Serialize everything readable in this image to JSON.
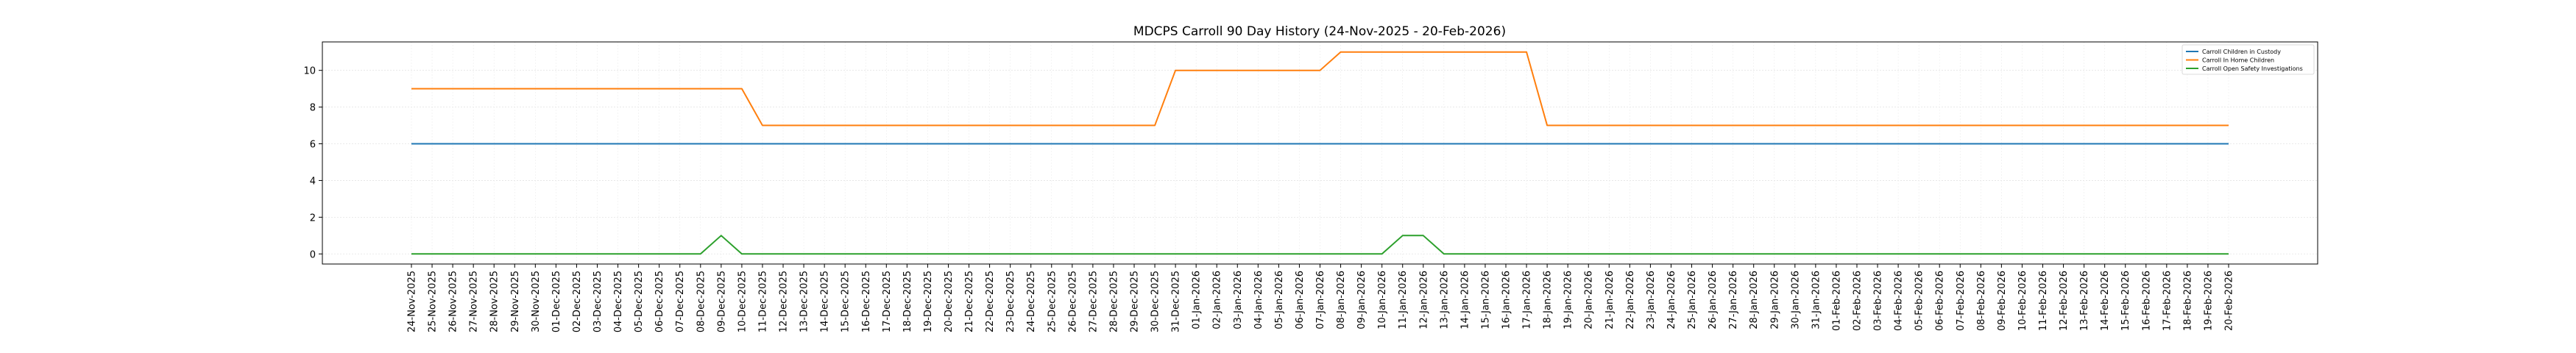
{
  "chart_data": {
    "type": "line",
    "title": "MDCPS Carroll 90 Day History (24-Nov-2025 - 20-Feb-2026)",
    "xlabel": "",
    "ylabel": "",
    "grid": true,
    "legend_position": "top-right",
    "ylim": [
      -0.55,
      11.55
    ],
    "yticks": [
      0,
      2,
      4,
      6,
      8,
      10
    ],
    "categories": [
      "24-Nov-2025",
      "25-Nov-2025",
      "26-Nov-2025",
      "27-Nov-2025",
      "28-Nov-2025",
      "29-Nov-2025",
      "30-Nov-2025",
      "01-Dec-2025",
      "02-Dec-2025",
      "03-Dec-2025",
      "04-Dec-2025",
      "05-Dec-2025",
      "06-Dec-2025",
      "07-Dec-2025",
      "08-Dec-2025",
      "09-Dec-2025",
      "10-Dec-2025",
      "11-Dec-2025",
      "12-Dec-2025",
      "13-Dec-2025",
      "14-Dec-2025",
      "15-Dec-2025",
      "16-Dec-2025",
      "17-Dec-2025",
      "18-Dec-2025",
      "19-Dec-2025",
      "20-Dec-2025",
      "21-Dec-2025",
      "22-Dec-2025",
      "23-Dec-2025",
      "24-Dec-2025",
      "25-Dec-2025",
      "26-Dec-2025",
      "27-Dec-2025",
      "28-Dec-2025",
      "29-Dec-2025",
      "30-Dec-2025",
      "31-Dec-2025",
      "01-Jan-2026",
      "02-Jan-2026",
      "03-Jan-2026",
      "04-Jan-2026",
      "05-Jan-2026",
      "06-Jan-2026",
      "07-Jan-2026",
      "08-Jan-2026",
      "09-Jan-2026",
      "10-Jan-2026",
      "11-Jan-2026",
      "12-Jan-2026",
      "13-Jan-2026",
      "14-Jan-2026",
      "15-Jan-2026",
      "16-Jan-2026",
      "17-Jan-2026",
      "18-Jan-2026",
      "19-Jan-2026",
      "20-Jan-2026",
      "21-Jan-2026",
      "22-Jan-2026",
      "23-Jan-2026",
      "24-Jan-2026",
      "25-Jan-2026",
      "26-Jan-2026",
      "27-Jan-2026",
      "28-Jan-2026",
      "29-Jan-2026",
      "30-Jan-2026",
      "31-Jan-2026",
      "01-Feb-2026",
      "02-Feb-2026",
      "03-Feb-2026",
      "04-Feb-2026",
      "05-Feb-2026",
      "06-Feb-2026",
      "07-Feb-2026",
      "08-Feb-2026",
      "09-Feb-2026",
      "10-Feb-2026",
      "11-Feb-2026",
      "12-Feb-2026",
      "13-Feb-2026",
      "14-Feb-2026",
      "15-Feb-2026",
      "16-Feb-2026",
      "17-Feb-2026",
      "18-Feb-2026",
      "19-Feb-2026",
      "20-Feb-2026"
    ],
    "series": [
      {
        "name": "Carroll Children in Custody",
        "color": "#1f77b4",
        "values": [
          6,
          6,
          6,
          6,
          6,
          6,
          6,
          6,
          6,
          6,
          6,
          6,
          6,
          6,
          6,
          6,
          6,
          6,
          6,
          6,
          6,
          6,
          6,
          6,
          6,
          6,
          6,
          6,
          6,
          6,
          6,
          6,
          6,
          6,
          6,
          6,
          6,
          6,
          6,
          6,
          6,
          6,
          6,
          6,
          6,
          6,
          6,
          6,
          6,
          6,
          6,
          6,
          6,
          6,
          6,
          6,
          6,
          6,
          6,
          6,
          6,
          6,
          6,
          6,
          6,
          6,
          6,
          6,
          6,
          6,
          6,
          6,
          6,
          6,
          6,
          6,
          6,
          6,
          6,
          6,
          6,
          6,
          6,
          6,
          6,
          6,
          6,
          6,
          6
        ]
      },
      {
        "name": "Carroll In Home Children",
        "color": "#ff7f0e",
        "values": [
          9,
          9,
          9,
          9,
          9,
          9,
          9,
          9,
          9,
          9,
          9,
          9,
          9,
          9,
          9,
          9,
          9,
          7,
          7,
          7,
          7,
          7,
          7,
          7,
          7,
          7,
          7,
          7,
          7,
          7,
          7,
          7,
          7,
          7,
          7,
          7,
          7,
          10,
          10,
          10,
          10,
          10,
          10,
          10,
          10,
          11,
          11,
          11,
          11,
          11,
          11,
          11,
          11,
          11,
          11,
          7,
          7,
          7,
          7,
          7,
          7,
          7,
          7,
          7,
          7,
          7,
          7,
          7,
          7,
          7,
          7,
          7,
          7,
          7,
          7,
          7,
          7,
          7,
          7,
          7,
          7,
          7,
          7,
          7,
          7,
          7,
          7,
          7,
          7
        ]
      },
      {
        "name": "Carroll Open Safety Investigations",
        "color": "#2ca02c",
        "values": [
          0,
          0,
          0,
          0,
          0,
          0,
          0,
          0,
          0,
          0,
          0,
          0,
          0,
          0,
          0,
          1,
          0,
          0,
          0,
          0,
          0,
          0,
          0,
          0,
          0,
          0,
          0,
          0,
          0,
          0,
          0,
          0,
          0,
          0,
          0,
          0,
          0,
          0,
          0,
          0,
          0,
          0,
          0,
          0,
          0,
          0,
          0,
          0,
          1,
          1,
          0,
          0,
          0,
          0,
          0,
          0,
          0,
          0,
          0,
          0,
          0,
          0,
          0,
          0,
          0,
          0,
          0,
          0,
          0,
          0,
          0,
          0,
          0,
          0,
          0,
          0,
          0,
          0,
          0,
          0,
          0,
          0,
          0,
          0,
          0,
          0,
          0,
          0,
          0
        ]
      }
    ]
  }
}
